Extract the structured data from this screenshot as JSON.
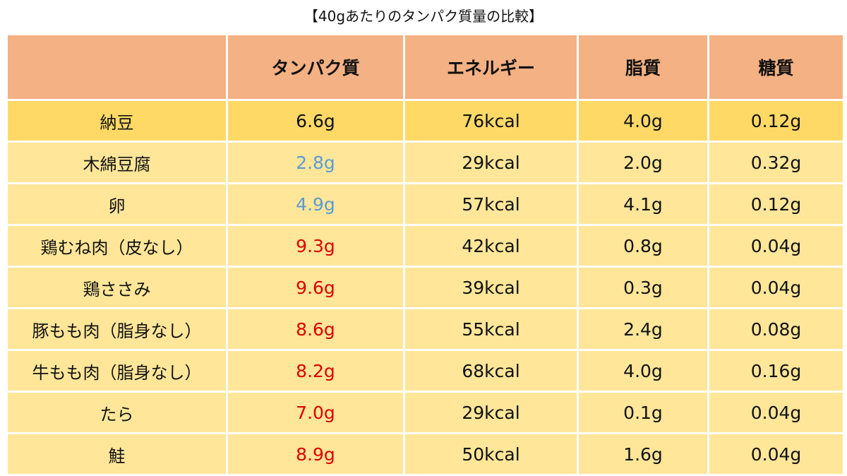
{
  "title": "【40gあたりのタンパク質量の比較】",
  "colors": {
    "header_bg": "#f4b183",
    "highlight_row_bg": "#ffd966",
    "row_bg": "#ffe699",
    "text_default": "#111111",
    "text_protein_low": "#5b9bd5",
    "text_protein_high": "#e00000"
  },
  "chart_data": {
    "type": "table",
    "title": "【40gあたりのタンパク質量の比較】",
    "columns": [
      "",
      "タンパク質",
      "エネルギー",
      "脂質",
      "糖質"
    ],
    "rows": [
      {
        "food": "納豆",
        "protein": "6.6g",
        "energy": "76kcal",
        "fat": "4.0g",
        "sugar": "0.12g",
        "protein_color": "#111111",
        "row_color": "#ffd966"
      },
      {
        "food": "木綿豆腐",
        "protein": "2.8g",
        "energy": "29kcal",
        "fat": "2.0g",
        "sugar": "0.32g",
        "protein_color": "#5b9bd5",
        "row_color": "#ffe699"
      },
      {
        "food": "卵",
        "protein": "4.9g",
        "energy": "57kcal",
        "fat": "4.1g",
        "sugar": "0.12g",
        "protein_color": "#5b9bd5",
        "row_color": "#ffe699"
      },
      {
        "food": "鶏むね肉（皮なし）",
        "protein": "9.3g",
        "energy": "42kcal",
        "fat": "0.8g",
        "sugar": "0.04g",
        "protein_color": "#e00000",
        "row_color": "#ffe699"
      },
      {
        "food": "鶏ささみ",
        "protein": "9.6g",
        "energy": "39kcal",
        "fat": "0.3g",
        "sugar": "0.04g",
        "protein_color": "#e00000",
        "row_color": "#ffe699"
      },
      {
        "food": "豚もも肉（脂身なし）",
        "protein": "8.6g",
        "energy": "55kcal",
        "fat": "2.4g",
        "sugar": "0.08g",
        "protein_color": "#e00000",
        "row_color": "#ffe699"
      },
      {
        "food": "牛もも肉（脂身なし）",
        "protein": "8.2g",
        "energy": "68kcal",
        "fat": "4.0g",
        "sugar": "0.16g",
        "protein_color": "#e00000",
        "row_color": "#ffe699"
      },
      {
        "food": "たら",
        "protein": "7.0g",
        "energy": "29kcal",
        "fat": "0.1g",
        "sugar": "0.04g",
        "protein_color": "#e00000",
        "row_color": "#ffe699"
      },
      {
        "food": "鮭",
        "protein": "8.9g",
        "energy": "50kcal",
        "fat": "1.6g",
        "sugar": "0.04g",
        "protein_color": "#e00000",
        "row_color": "#ffe699"
      }
    ]
  }
}
